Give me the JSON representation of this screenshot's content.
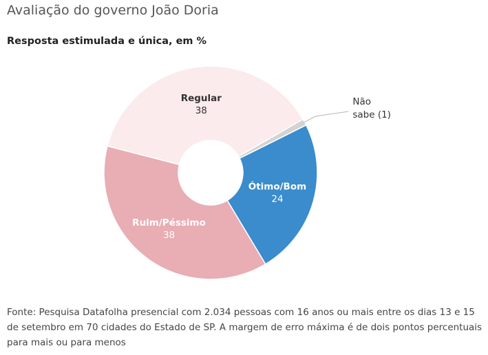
{
  "header": {
    "title": "Avaliação do governo João Doria",
    "subtitle": "Resposta estimulada e única, em %"
  },
  "chart_data": {
    "type": "pie",
    "donut": true,
    "slices": [
      {
        "label": "Ótimo/Bom",
        "value": 24,
        "value_label": "24",
        "color": "#3a8ccc",
        "text_color": "#ffffff"
      },
      {
        "label": "Ruim/Péssimo",
        "value": 38,
        "value_label": "38",
        "color": "#e9adb4",
        "text_color": "#ffffff"
      },
      {
        "label": "Regular",
        "value": 38,
        "value_label": "38",
        "color": "#fcebec",
        "text_color": "#333333"
      },
      {
        "label": "Não sabe",
        "value": 1,
        "value_label": "Não sabe (1)",
        "color": "#d3d3d3",
        "text_color": "#333333"
      }
    ]
  },
  "footer": {
    "source": "Fonte: Pesquisa Datafolha presencial com 2.034 pessoas com 16 anos ou mais entre os dias 13 e 15 de setembro em 70 cidades do Estado de SP. A margem de erro máxima é de dois pontos percentuais para mais ou para menos"
  }
}
